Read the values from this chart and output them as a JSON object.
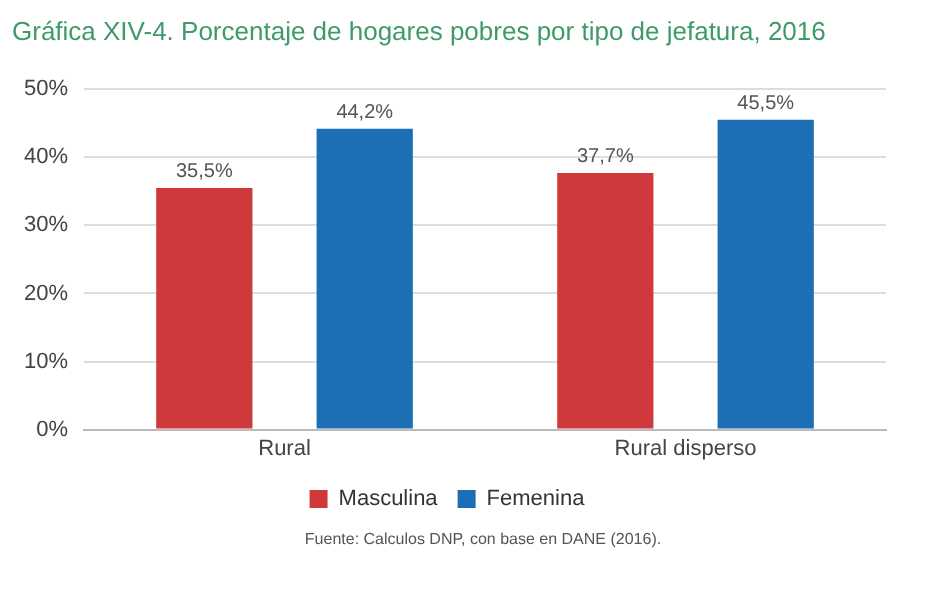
{
  "chart_data": {
    "type": "bar",
    "title": "Gráfica XIV-4. Porcentaje de hogares pobres por tipo de jefatura, 2016",
    "categories": [
      "Rural",
      "Rural disperso"
    ],
    "series": [
      {
        "name": "Masculina",
        "color": "#d0393b",
        "values": [
          35.5,
          37.7
        ],
        "value_labels": [
          "35,5%",
          "37,7%"
        ]
      },
      {
        "name": "Femenina",
        "color": "#1c6fb4",
        "values": [
          44.2,
          45.5
        ],
        "value_labels": [
          "44,2%",
          "45,5%"
        ]
      }
    ],
    "ylim": [
      0,
      50
    ],
    "yticks": [
      {
        "value": 0,
        "label": "0%"
      },
      {
        "value": 10,
        "label": "10%"
      },
      {
        "value": 20,
        "label": "20%"
      },
      {
        "value": 30,
        "label": "30%"
      },
      {
        "value": 40,
        "label": "40%"
      },
      {
        "value": 50,
        "label": "50%"
      }
    ],
    "grid": "y",
    "legend": "bottom",
    "annotations": [
      "Fuente: Calculos DNP, con base en DANE (2016)."
    ]
  }
}
